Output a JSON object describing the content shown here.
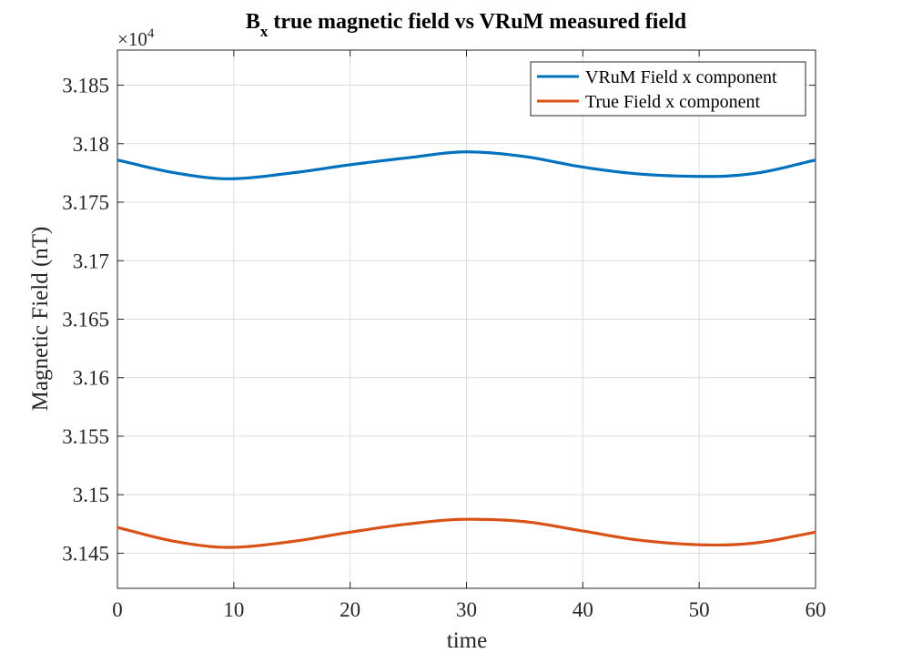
{
  "chart_data": {
    "type": "line",
    "title": "B",
    "title_sub": "x",
    "title_rest": " true magnetic field vs VRuM measured field",
    "xlabel": "time",
    "ylabel": "Magnetic Field (nT)",
    "exponent_label": "×10",
    "exponent_power": "4",
    "xlim": [
      0,
      60
    ],
    "ylim": [
      31420,
      31880
    ],
    "x_ticks": [
      0,
      10,
      20,
      30,
      40,
      50,
      60
    ],
    "x_tick_labels": [
      "0",
      "10",
      "20",
      "30",
      "40",
      "50",
      "60"
    ],
    "y_ticks": [
      31450,
      31500,
      31550,
      31600,
      31650,
      31700,
      31750,
      31800,
      31850
    ],
    "y_tick_labels": [
      "3.145",
      "3.15",
      "3.155",
      "3.16",
      "3.165",
      "3.17",
      "3.175",
      "3.18",
      "3.185"
    ],
    "grid": true,
    "legend_position": "top-right",
    "series": [
      {
        "name": "VRuM Field x component",
        "color": "#0072BD",
        "x": [
          0,
          5,
          9.5,
          15,
          20,
          25,
          30,
          35,
          40,
          45,
          51,
          55,
          60
        ],
        "y": [
          31786,
          31775,
          31770,
          31775,
          31782,
          31788,
          31793,
          31789,
          31780,
          31774,
          31772,
          31775,
          31786
        ]
      },
      {
        "name": "True Field x component",
        "color": "#D95319",
        "x": [
          0,
          5,
          9.5,
          15,
          20,
          25,
          30,
          35,
          40,
          45,
          51.5,
          55,
          60
        ],
        "y": [
          31472,
          31460,
          31455,
          31460,
          31468,
          31475,
          31479,
          31477,
          31469,
          31461,
          31457,
          31459,
          31468
        ]
      }
    ]
  }
}
